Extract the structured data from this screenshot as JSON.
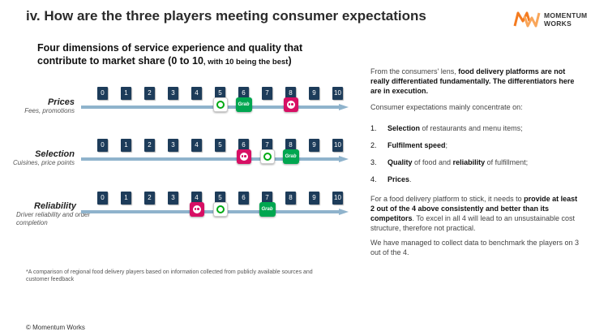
{
  "title": "iv. How are the three players meeting consumer expectations",
  "logo": {
    "line1": "MOMENTUM",
    "line2": "WORKS"
  },
  "subtitle": {
    "main": "Four dimensions of service experience and quality that contribute to market share (0 to 10",
    "small": ", with 10 being the best",
    "end": ")"
  },
  "scale_ticks": [
    "0",
    "1",
    "2",
    "3",
    "4",
    "5",
    "6",
    "7",
    "8",
    "9",
    "10"
  ],
  "rows": [
    {
      "name": "Prices",
      "sub": "Fees, promotions",
      "badges": [
        {
          "brand": "gojek",
          "value": 5
        },
        {
          "brand": "grab",
          "value": 6
        },
        {
          "brand": "panda",
          "value": 8
        }
      ]
    },
    {
      "name": "Selection",
      "sub": "Cuisines, price points",
      "badges": [
        {
          "brand": "panda",
          "value": 6
        },
        {
          "brand": "gojek",
          "value": 7
        },
        {
          "brand": "grab",
          "value": 8
        }
      ]
    },
    {
      "name": "Reliability",
      "sub": "Driver reliability and order completion",
      "badges": [
        {
          "brand": "panda",
          "value": 4
        },
        {
          "brand": "gojek",
          "value": 5
        },
        {
          "brand": "grab",
          "value": 7
        }
      ]
    }
  ],
  "brand_labels": {
    "grab": "Grab"
  },
  "colors": {
    "tick": "#1d3c5a",
    "arrow": "#8fb3cc",
    "gojek": "#00aa13",
    "grab": "#00a650",
    "panda": "#d70f64",
    "logo_orange": "#f47b20"
  },
  "right": {
    "p1_a": "From the consumers' lens, ",
    "p1_b": "food delivery platforms are not really differentiated fundamentally. The differentiators here are in execution.",
    "p2": "Consumer expectations mainly concentrate on:",
    "list": [
      {
        "num": "1.",
        "bold": "Selection",
        "rest": " of restaurants and menu items;"
      },
      {
        "num": "2.",
        "bold": "Fulfilment speed",
        "rest": ";"
      },
      {
        "num": "3.",
        "bold": "Quality",
        "rest": " of food and ",
        "bold2": "reliability",
        "rest2": " of fulfillment;"
      },
      {
        "num": "4.",
        "bold": "Prices",
        "rest": "."
      }
    ],
    "p3_a": "For a food delivery platform to stick, it needs to ",
    "p3_b": "provide at least 2 out of the 4 above consistently and better than its competitors",
    "p3_c": ". To excel in all 4 will lead to an unsustainable cost structure, therefore not practical.",
    "p4": "We have managed to collect data to benchmark the players on 3 out of the 4."
  },
  "footnote": "*A comparison of regional food delivery players based on information collected from publicly available sources and customer feedback",
  "copyright": "© Momentum Works"
}
